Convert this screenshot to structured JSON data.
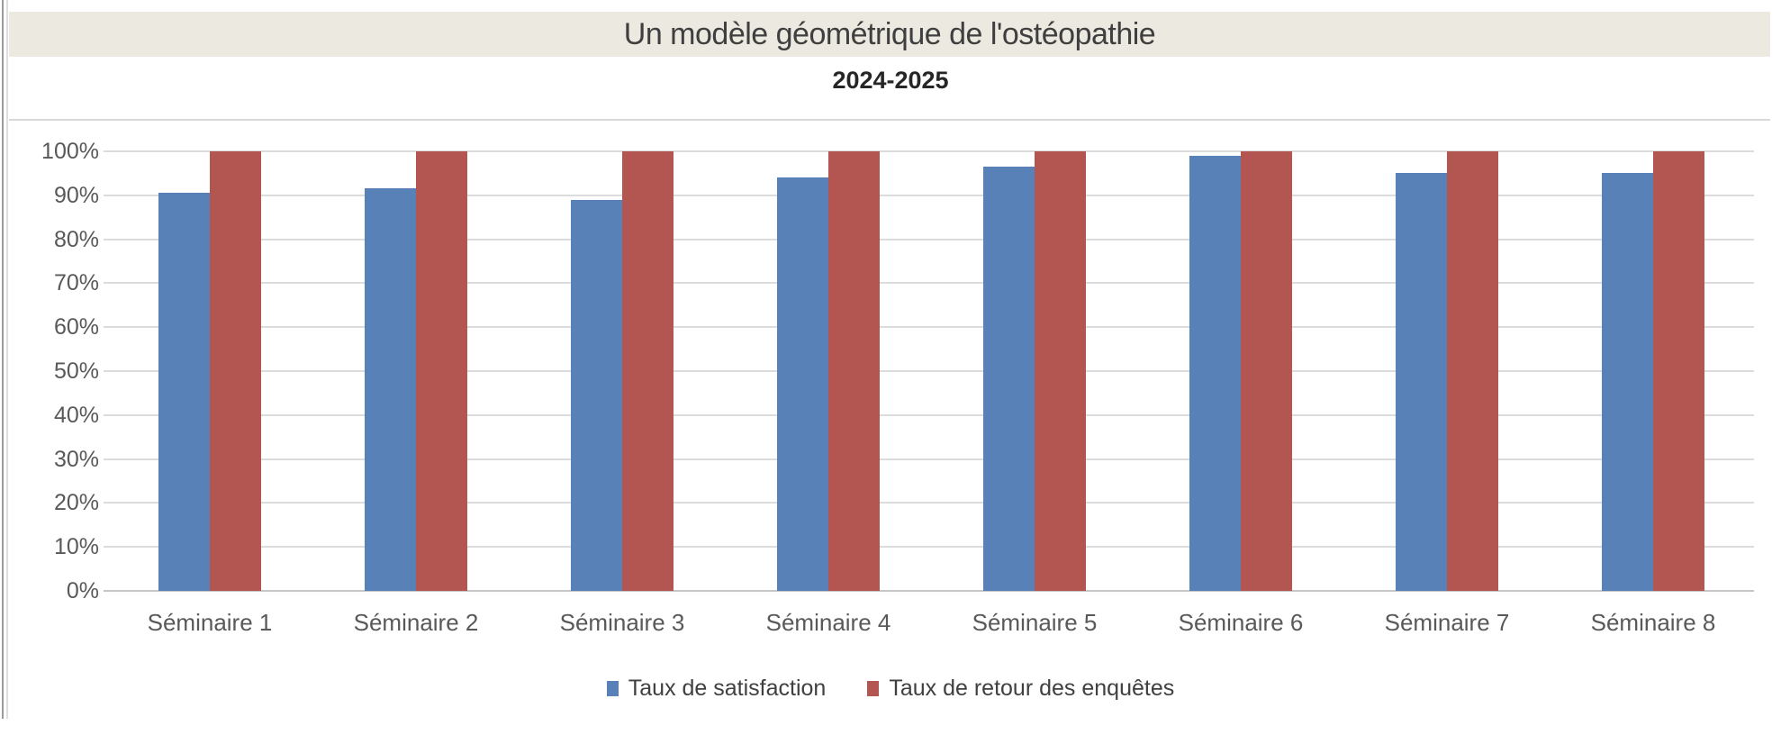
{
  "header": {
    "note": ""
  },
  "colors": {
    "title_band_bg": "#ECE9E0",
    "title_text": "#3F3F3F",
    "subtitle_text": "#262626",
    "axis_text": "#595959",
    "legend_text": "#404040",
    "gridline": "#DCDCDC",
    "axis_line": "#C6C6C6",
    "chart_border": "#D9D9D9",
    "window_border": "#9B9B9B",
    "series_satisfaction": "#5881B8",
    "series_retour": "#B35551"
  },
  "chart_data": {
    "type": "bar",
    "title": "Un modèle géométrique de l'ostéopathie",
    "subtitle": "2024-2025",
    "categories": [
      "Séminaire 1",
      "Séminaire 2",
      "Séminaire 3",
      "Séminaire 4",
      "Séminaire 5",
      "Séminaire 6",
      "Séminaire 7",
      "Séminaire 8"
    ],
    "series": [
      {
        "name": "Taux de satisfaction",
        "color": "#5881B8",
        "values": [
          90.5,
          91.5,
          89,
          94,
          96.5,
          99,
          95,
          95
        ]
      },
      {
        "name": "Taux de retour des enquêtes",
        "color": "#B35551",
        "values": [
          100,
          100,
          100,
          100,
          100,
          100,
          100,
          100
        ]
      }
    ],
    "xlabel": "",
    "ylabel": "",
    "y_axis": {
      "min": 0,
      "max": 100,
      "step": 10,
      "unit": "%"
    },
    "y_tick_labels": [
      "0%",
      "10%",
      "20%",
      "30%",
      "40%",
      "50%",
      "60%",
      "70%",
      "80%",
      "90%",
      "100%"
    ],
    "ylim": [
      0,
      100
    ],
    "grid": true,
    "legend_position": "bottom"
  }
}
